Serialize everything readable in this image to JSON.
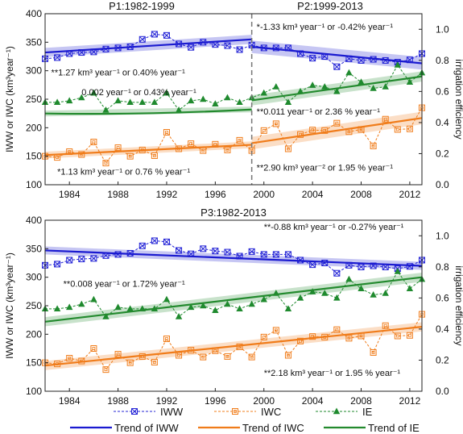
{
  "chart_data": [
    {
      "type": "line",
      "panel": "top",
      "subtitles": [
        "P1:1982-1999",
        "P2:1999-2013"
      ],
      "ylabel": "IWW or IWC (km³year⁻¹)",
      "ylabel_right": "irrigation efficiency",
      "xlim": [
        1982,
        2013
      ],
      "ylim": [
        100,
        400
      ],
      "ylim_right": [
        0.0,
        1.1
      ],
      "x_ticks": [
        1984,
        1988,
        1992,
        1996,
        2000,
        2004,
        2008,
        2012
      ],
      "y_ticks": [
        100,
        150,
        200,
        250,
        300,
        350,
        400
      ],
      "y_ticks_right": [
        "0.0",
        "0.2",
        "0.4",
        "0.6",
        "0.8",
        "1.0"
      ],
      "divider_x": 1999,
      "annotations": [
        {
          "text": "**1.27 km³ year⁻¹ or 0.40% year⁻¹",
          "anchor": [
            1982.5,
            292
          ]
        },
        {
          "text": "0.002 year⁻¹ or 0.43% year⁻¹",
          "anchor": [
            1985,
            257
          ]
        },
        {
          "text": "*1.13 km³ year⁻¹ or 0.76 % year⁻¹",
          "anchor": [
            1983,
            118
          ]
        },
        {
          "text": "*-1.33 km³ year⁻¹ or -0.42% year⁻¹",
          "anchor": [
            1999.4,
            372
          ]
        },
        {
          "text": "**0.011 year⁻¹ or 2.36 % year⁻¹",
          "anchor": [
            1999.4,
            223
          ]
        },
        {
          "text": "**2.90 km³ year⁻² or 1.95 % year⁻¹",
          "anchor": [
            1999.4,
            125
          ]
        }
      ],
      "trends": [
        {
          "series": "IWW",
          "x": [
            1982,
            1999
          ],
          "y": [
            332,
            355
          ],
          "band": 8
        },
        {
          "series": "IWW",
          "x": [
            1999,
            2013
          ],
          "y": [
            342,
            313
          ],
          "band": 11
        },
        {
          "series": "IWC",
          "x": [
            1982,
            1999
          ],
          "y": [
            152,
            170
          ],
          "band": 6
        },
        {
          "series": "IWC",
          "x": [
            1999,
            2013
          ],
          "y": [
            173,
            217
          ],
          "band": 11
        },
        {
          "series": "IE",
          "x": [
            1982,
            1999
          ],
          "y": [
            225,
            232
          ],
          "band": 5,
          "curve": [
            1990,
            222
          ]
        },
        {
          "series": "IE",
          "x": [
            1999,
            2013
          ],
          "y": [
            248,
            290
          ],
          "band": 9
        }
      ]
    },
    {
      "type": "line",
      "panel": "bottom",
      "subtitle": "P3:1982-2013",
      "ylabel": "IWW or IWC (km³year⁻¹)",
      "ylabel_right": "irrigation efficiency",
      "xlim": [
        1982,
        2013
      ],
      "ylim": [
        100,
        400
      ],
      "ylim_right": [
        0.0,
        1.1
      ],
      "x_ticks": [
        1984,
        1988,
        1992,
        1996,
        2000,
        2004,
        2008,
        2012
      ],
      "y_ticks": [
        100,
        150,
        200,
        250,
        300,
        350,
        400
      ],
      "y_ticks_right": [
        "0.0",
        "0.2",
        "0.4",
        "0.6",
        "0.8",
        "1.0"
      ],
      "annotations": [
        {
          "text": "**-0.88 km³ year⁻¹ or -0.27% year⁻¹",
          "anchor": [
            2000,
            383
          ]
        },
        {
          "text": "**0.008 year⁻¹ or 1.72% year⁻¹",
          "anchor": [
            1983.5,
            283
          ]
        },
        {
          "text": "**2.18 km³ year⁻¹ or 1.95 % year⁻¹",
          "anchor": [
            2000,
            127
          ]
        }
      ],
      "trends": [
        {
          "series": "IWW",
          "x": [
            1982,
            2013
          ],
          "y": [
            347,
            320
          ],
          "band": 7
        },
        {
          "series": "IWC",
          "x": [
            1982,
            2013
          ],
          "y": [
            145,
            213
          ],
          "band": 8
        },
        {
          "series": "IE",
          "x": [
            1982,
            2013
          ],
          "y": [
            222,
            300
          ],
          "band": 8
        }
      ]
    }
  ],
  "series_data": {
    "x": [
      1982,
      1983,
      1984,
      1985,
      1986,
      1987,
      1988,
      1989,
      1990,
      1991,
      1992,
      1993,
      1994,
      1995,
      1996,
      1997,
      1998,
      1999,
      2000,
      2001,
      2002,
      2003,
      2004,
      2005,
      2006,
      2007,
      2008,
      2009,
      2010,
      2011,
      2012,
      2013
    ],
    "IWW": [
      321,
      323,
      330,
      332,
      333,
      338,
      340,
      342,
      355,
      364,
      362,
      347,
      341,
      350,
      346,
      344,
      337,
      345,
      340,
      340,
      340,
      330,
      322,
      325,
      307,
      321,
      318,
      320,
      318,
      315,
      319,
      330
    ],
    "IWC": [
      150,
      148,
      158,
      153,
      175,
      138,
      165,
      150,
      161,
      151,
      192,
      163,
      172,
      160,
      171,
      161,
      178,
      160,
      195,
      207,
      163,
      188,
      196,
      195,
      208,
      193,
      197,
      168,
      215,
      197,
      198,
      235
    ],
    "IE": [
      0.53,
      0.53,
      0.54,
      0.56,
      0.59,
      0.48,
      0.54,
      0.53,
      0.53,
      0.53,
      0.59,
      0.48,
      0.54,
      0.55,
      0.52,
      0.56,
      0.53,
      0.56,
      0.59,
      0.63,
      0.53,
      0.6,
      0.64,
      0.63,
      0.6,
      0.72,
      0.66,
      0.62,
      0.63,
      0.77,
      0.66,
      0.72
    ]
  },
  "legend": {
    "IWW": "IWW",
    "IWC": "IWC",
    "IE": "IE",
    "trend_IWW": "Trend of IWW",
    "trend_IWC": "Trend of IWC",
    "trend_IE": "Trend of IE"
  },
  "colors": {
    "IWW": "#2424d6",
    "IWC": "#f07c1a",
    "IE": "#1f8a2e",
    "trend_IWW": "#1a1ad0",
    "trend_IWC": "#f07c1a",
    "trend_IE": "#238a2e"
  }
}
